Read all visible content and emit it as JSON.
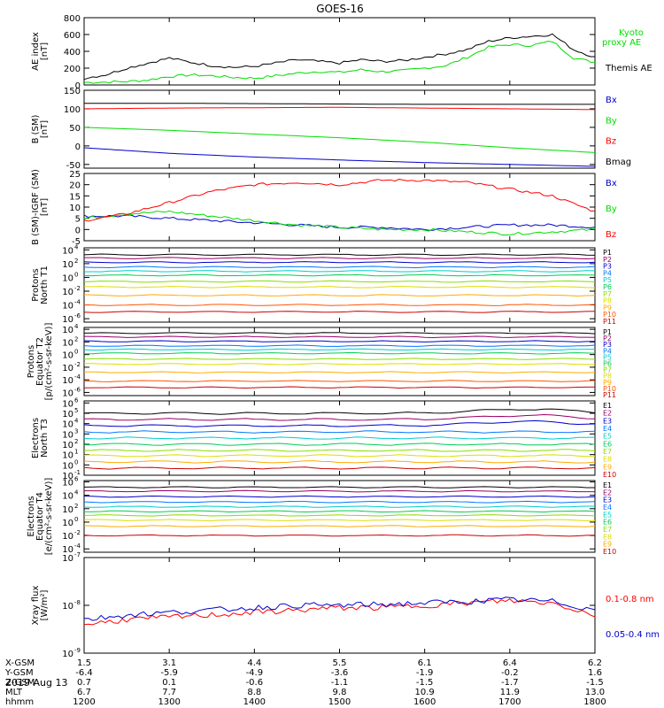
{
  "title": "GOES-16",
  "date_label": "2019 Aug 13",
  "colors": {
    "black": "#000000",
    "red": "#ff0000",
    "green": "#00dd00",
    "blue": "#0000cc",
    "p_colors": [
      "#000000",
      "#990066",
      "#0000cc",
      "#0077ff",
      "#00cccc",
      "#00cc55",
      "#88dd00",
      "#dddd00",
      "#ffaa00",
      "#ff5500",
      "#cc0000"
    ],
    "e_colors": [
      "#000000",
      "#990066",
      "#0000cc",
      "#0077ff",
      "#00cccc",
      "#00cc55",
      "#88dd00",
      "#dddd00",
      "#ffaa00",
      "#cc0000"
    ]
  },
  "orbit": {
    "rows": [
      {
        "label": "X-GSM",
        "values": [
          "1.5",
          "3.1",
          "4.4",
          "5.5",
          "6.1",
          "6.4",
          "6.2"
        ]
      },
      {
        "label": "Y-GSM",
        "values": [
          "-6.4",
          "-5.9",
          "-4.9",
          "-3.6",
          "-1.9",
          "-0.2",
          "1.6"
        ]
      },
      {
        "label": "Z-GSM",
        "values": [
          "0.7",
          "0.1",
          "-0.6",
          "-1.1",
          "-1.5",
          "-1.7",
          "-1.5"
        ]
      },
      {
        "label": "MLT",
        "values": [
          "6.7",
          "7.7",
          "8.8",
          "9.8",
          "10.9",
          "11.9",
          "13.0"
        ]
      },
      {
        "label": "hhmm",
        "values": [
          "1200",
          "1300",
          "1400",
          "1500",
          "1600",
          "1700",
          "1800"
        ]
      }
    ]
  },
  "chart_data": [
    {
      "type": "line",
      "ylabel": [
        "AE index",
        "[nT]"
      ],
      "ylim": [
        0,
        800
      ],
      "yticks": [
        "0",
        "200",
        "400",
        "600",
        "800"
      ],
      "x": [
        0,
        0.25,
        0.5,
        0.75,
        1,
        1.25,
        1.5,
        1.75,
        2,
        2.25,
        2.5,
        2.75,
        3,
        3.25,
        3.5,
        3.75,
        4,
        4.25,
        4.5,
        4.75,
        5,
        5.25,
        5.5,
        5.75,
        6
      ],
      "series": [
        {
          "name": "Kyoto proxy AE",
          "color": "green",
          "values": [
            30,
            35,
            40,
            60,
            100,
            120,
            110,
            90,
            80,
            110,
            140,
            160,
            150,
            180,
            160,
            170,
            200,
            230,
            330,
            450,
            480,
            470,
            520,
            320,
            270
          ]
        },
        {
          "name": "Themis AE",
          "color": "black",
          "values": [
            80,
            120,
            200,
            260,
            320,
            270,
            230,
            210,
            220,
            260,
            300,
            280,
            260,
            300,
            280,
            290,
            330,
            370,
            420,
            520,
            560,
            580,
            600,
            420,
            330
          ]
        }
      ]
    },
    {
      "type": "line",
      "ylabel": [
        "B (SM)",
        "[nT]"
      ],
      "ylim": [
        -60,
        150
      ],
      "yticks": [
        "-50",
        "0",
        "50",
        "100",
        "150"
      ],
      "x": [
        0,
        1,
        2,
        3,
        4,
        5,
        6
      ],
      "series": [
        {
          "name": "Bx",
          "color": "blue",
          "values": [
            -5,
            -20,
            -30,
            -38,
            -45,
            -50,
            -55
          ]
        },
        {
          "name": "By",
          "color": "green",
          "values": [
            50,
            42,
            32,
            22,
            10,
            -5,
            -18
          ]
        },
        {
          "name": "Bz",
          "color": "red",
          "values": [
            100,
            102,
            103,
            104,
            102,
            100,
            98
          ]
        },
        {
          "name": "Bmag",
          "color": "black",
          "values": [
            115,
            115,
            114,
            113,
            112,
            112,
            112
          ]
        }
      ]
    },
    {
      "type": "line",
      "ylabel": [
        "B (SM)-IGRF (SM)",
        "[nT]"
      ],
      "ylim": [
        -5,
        25
      ],
      "yticks": [
        "-5",
        "0",
        "5",
        "10",
        "15",
        "20",
        "25"
      ],
      "x": [
        0,
        0.5,
        1,
        1.5,
        2,
        2.5,
        3,
        3.5,
        4,
        4.5,
        5,
        5.5,
        6
      ],
      "series": [
        {
          "name": "Bx",
          "color": "blue",
          "values": [
            6,
            6,
            5,
            4,
            3,
            2,
            1,
            1,
            0,
            1,
            2,
            2,
            1
          ]
        },
        {
          "name": "By",
          "color": "green",
          "values": [
            5,
            7,
            8,
            6,
            4,
            2,
            1,
            0,
            0,
            -1,
            -2,
            -1,
            0
          ]
        },
        {
          "name": "Bz",
          "color": "red",
          "values": [
            4,
            7,
            12,
            17,
            20,
            21,
            20,
            22,
            22,
            21,
            18,
            15,
            8
          ]
        }
      ]
    },
    {
      "type": "line",
      "log": true,
      "ylabel": [
        "Protons",
        "North T1"
      ],
      "ylim": [
        -6.5,
        4.3
      ],
      "yticks_exp": [
        -6,
        -4,
        -2,
        0,
        2,
        4
      ],
      "channels": [
        "P1",
        "P2",
        "P3",
        "P4",
        "P5",
        "P6",
        "P7",
        "P8",
        "P9",
        "P10",
        "P11"
      ],
      "levels_log10": [
        3.3,
        2.8,
        2.2,
        1.5,
        0.9,
        0.3,
        -0.6,
        -1.4,
        -2.6,
        -4.0,
        -5.0
      ]
    },
    {
      "type": "line",
      "log": true,
      "ylabel": [
        "Protons",
        "Equator T2",
        "[p/(cm²-s-sr-keV)]"
      ],
      "ylim": [
        -6.5,
        4.3
      ],
      "yticks_exp": [
        -6,
        -4,
        -2,
        0,
        2,
        4
      ],
      "channels": [
        "P1",
        "P2",
        "P3",
        "P4",
        "P5",
        "P6",
        "P7",
        "P8",
        "P9",
        "P10",
        "P11"
      ],
      "levels_log10": [
        3.4,
        2.8,
        2.1,
        1.4,
        0.8,
        0.2,
        -0.7,
        -1.5,
        -2.8,
        -4.2,
        -5.2
      ]
    },
    {
      "type": "line",
      "log": true,
      "ylabel": [
        "Electrons",
        "North T3"
      ],
      "ylim": [
        -1,
        6.2
      ],
      "yticks_exp": [
        -1,
        0,
        1,
        2,
        3,
        4,
        5,
        6
      ],
      "channels": [
        "E1",
        "E2",
        "E3",
        "E4",
        "E5",
        "E6",
        "E7",
        "E8",
        "E9",
        "E10"
      ],
      "levels_log10": [
        5.0,
        4.4,
        3.8,
        3.2,
        2.6,
        2.0,
        1.4,
        0.9,
        0.3,
        -0.3
      ]
    },
    {
      "type": "line",
      "log": true,
      "ylabel": [
        "Electrons",
        "Equator T4",
        "[e/(cm²-s-sr-keV)]"
      ],
      "ylim": [
        -4.5,
        6.2
      ],
      "yticks_exp": [
        -4,
        -2,
        0,
        2,
        4,
        6
      ],
      "channels": [
        "E1",
        "E2",
        "E3",
        "E4",
        "E5",
        "E6",
        "E7",
        "E8",
        "E9",
        "E10"
      ],
      "levels_log10": [
        5.2,
        4.6,
        3.8,
        3.0,
        2.3,
        1.6,
        1.0,
        0.3,
        -0.6,
        -2.0
      ]
    },
    {
      "type": "line",
      "log": true,
      "ylabel": [
        "Xray flux",
        "[W/m²]"
      ],
      "ylim": [
        -9,
        -7
      ],
      "yticks_exp": [
        -9,
        -8,
        -7
      ],
      "x": [
        0,
        0.5,
        1,
        1.5,
        2,
        2.5,
        3,
        3.5,
        4,
        4.5,
        5,
        5.5,
        6
      ],
      "series": [
        {
          "name": "0.1-0.8 nm",
          "color": "red",
          "values": [
            -8.4,
            -8.3,
            -8.25,
            -8.2,
            -8.15,
            -8.1,
            -8.05,
            -8.05,
            -8.0,
            -7.95,
            -7.9,
            -7.95,
            -8.2
          ]
        },
        {
          "name": "0.05-0.4 nm",
          "color": "blue",
          "values": [
            -8.3,
            -8.2,
            -8.15,
            -8.1,
            -8.05,
            -8.0,
            -8.0,
            -7.98,
            -7.95,
            -7.92,
            -7.88,
            -7.92,
            -8.1
          ]
        }
      ]
    }
  ]
}
